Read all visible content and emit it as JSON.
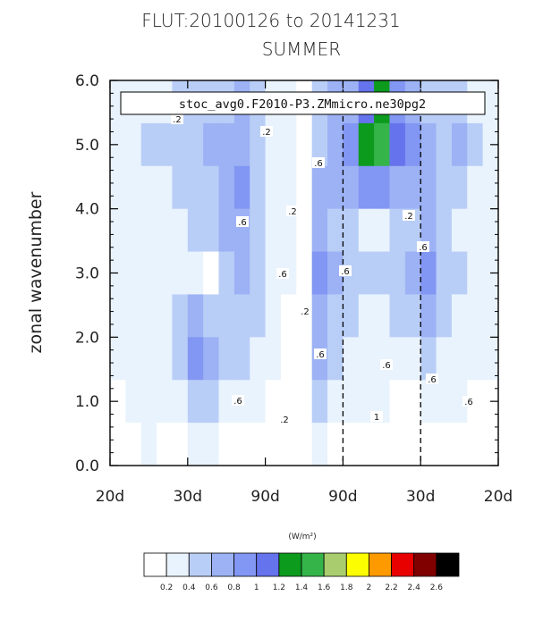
{
  "chart_data": {
    "type": "heatmap",
    "title": "FLUT:20100126 to 20141231",
    "subtitle": "SUMMER",
    "case_label": "stoc_avg0.F2010-P3.ZMmicro.ne30pg2",
    "ylabel": "zonal wavenumber",
    "ylim": [
      0,
      6
    ],
    "y_ticks": [
      "0.0",
      "1.0",
      "2.0",
      "3.0",
      "4.0",
      "5.0",
      "6.0"
    ],
    "x_ticks": [
      "20d",
      "30d",
      "90d",
      "90d",
      "30d",
      "20d"
    ],
    "units": "(W/m²)",
    "levels": [
      0.2,
      0.4,
      0.6,
      0.8,
      1,
      1.2,
      1.4,
      1.6,
      1.8,
      2,
      2.2,
      2.4,
      2.6
    ],
    "level_labels": [
      "0.2",
      "0.4",
      "0.6",
      "0.8",
      "1",
      "1.2",
      "1.4",
      "1.6",
      "1.8",
      "2",
      "2.2",
      "2.4",
      "2.6"
    ],
    "colors": [
      "#ffffff",
      "#e9f3fd",
      "#b9cef7",
      "#9db2f5",
      "#8296f3",
      "#6573ec",
      "#0d9b1e",
      "#35b44a",
      "#a9cd6e",
      "#fcfd00",
      "#fd9a00",
      "#e80000",
      "#800000",
      "#000000"
    ],
    "contour_labels": [
      ".2",
      ".2",
      ".2",
      ".2",
      ".2",
      ".2",
      ".6",
      ".6",
      ".6",
      ".6",
      ".6",
      ".6",
      ".6",
      ".6",
      ".6",
      ".6",
      "1"
    ],
    "grid": false,
    "dashed_reference_lines": [
      "90d",
      "30d"
    ],
    "rows": [
      [
        0.2,
        0.2,
        0.3,
        0.3,
        0.4,
        0.45,
        0.5,
        0.5,
        0.6,
        0.45,
        0.35,
        0.25,
        0.05,
        0.5,
        0.7,
        0.75,
        1.05,
        1.2,
        0.9,
        0.7,
        0.5,
        0.5,
        0.45,
        0.35,
        0.3
      ],
      [
        0.3,
        0.3,
        0.4,
        0.45,
        0.5,
        0.55,
        0.6,
        0.6,
        0.6,
        0.5,
        0.35,
        0.25,
        0.05,
        0.55,
        0.75,
        0.8,
        1.2,
        1.5,
        1.05,
        0.85,
        0.7,
        0.55,
        0.65,
        0.45,
        0.35
      ],
      [
        0.3,
        0.3,
        0.35,
        0.35,
        0.4,
        0.45,
        0.5,
        0.7,
        0.8,
        0.5,
        0.35,
        0.2,
        0.05,
        0.6,
        0.7,
        0.75,
        0.9,
        0.8,
        0.7,
        0.65,
        0.6,
        0.55,
        0.45,
        0.35,
        0.3
      ],
      [
        0.2,
        0.2,
        0.3,
        0.3,
        0.35,
        0.4,
        0.45,
        0.65,
        0.75,
        0.5,
        0.3,
        0.2,
        0.05,
        0.7,
        0.55,
        0.55,
        0.2,
        0.25,
        0.5,
        0.55,
        0.75,
        0.5,
        0.35,
        0.3,
        0.25
      ],
      [
        0.2,
        0.25,
        0.3,
        0.3,
        0.3,
        0.3,
        0.1,
        0.45,
        0.6,
        0.5,
        0.3,
        0.2,
        0.05,
        0.85,
        0.6,
        0.5,
        0.45,
        0.4,
        0.45,
        0.6,
        0.85,
        0.55,
        0.4,
        0.3,
        0.25
      ],
      [
        0.3,
        0.3,
        0.35,
        0.35,
        0.5,
        0.7,
        0.55,
        0.5,
        0.55,
        0.4,
        0.25,
        0.15,
        0.05,
        0.75,
        0.45,
        0.45,
        0.35,
        0.35,
        0.4,
        0.5,
        0.65,
        0.45,
        0.3,
        0.25,
        0.2
      ],
      [
        0.25,
        0.3,
        0.35,
        0.3,
        0.55,
        0.9,
        0.6,
        0.5,
        0.4,
        0.3,
        0.2,
        0.15,
        0.05,
        0.6,
        0.4,
        0.35,
        0.3,
        0.3,
        0.3,
        0.35,
        0.45,
        0.35,
        0.25,
        0.2,
        0.2
      ],
      [
        0.15,
        0.2,
        0.3,
        0.3,
        0.35,
        0.45,
        0.4,
        0.35,
        0.3,
        0.25,
        0.15,
        0.1,
        0.05,
        0.45,
        0.35,
        0.25,
        0.2,
        0.2,
        0.15,
        0.15,
        0.25,
        0.2,
        0.2,
        0.15,
        0.15
      ],
      [
        0.15,
        0.15,
        0.2,
        0.15,
        0.15,
        0.2,
        0.2,
        0.15,
        0.15,
        0.1,
        0.05,
        0.1,
        0.1,
        0.2,
        0.15,
        0.15,
        0.15,
        0.1,
        0.1,
        0.1,
        0.1,
        0.1,
        0.15,
        0.1,
        0.15
      ]
    ]
  }
}
